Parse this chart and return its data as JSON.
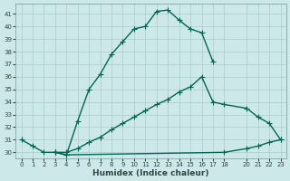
{
  "xlabel": "Humidex (Indice chaleur)",
  "bg_color": "#cce8e8",
  "line_color": "#006655",
  "grid_color": "#aacccc",
  "xlim": [
    -0.5,
    23.5
  ],
  "ylim": [
    29.5,
    41.8
  ],
  "xticks": [
    0,
    1,
    2,
    3,
    4,
    5,
    6,
    7,
    8,
    9,
    10,
    11,
    12,
    13,
    14,
    15,
    16,
    17,
    18,
    20,
    21,
    22,
    23
  ],
  "yticks": [
    30,
    31,
    32,
    33,
    34,
    35,
    36,
    37,
    38,
    39,
    40,
    41
  ],
  "series": [
    {
      "x": [
        0,
        1,
        2,
        3,
        4,
        5,
        6,
        7,
        8,
        9,
        10,
        11,
        12,
        13,
        14,
        15,
        16,
        17
      ],
      "y": [
        31.0,
        30.5,
        30.0,
        30.0,
        29.8,
        32.5,
        35.0,
        36.2,
        37.8,
        38.8,
        39.8,
        40.0,
        41.2,
        41.3,
        40.5,
        39.8,
        39.5,
        37.2
      ]
    },
    {
      "x": [
        3,
        4,
        5,
        6,
        7,
        8,
        9,
        10,
        11,
        12,
        13,
        14,
        15,
        16,
        17,
        18,
        20,
        21,
        22,
        23
      ],
      "y": [
        30.0,
        30.0,
        30.3,
        30.8,
        31.2,
        31.8,
        32.3,
        32.8,
        33.3,
        33.8,
        34.2,
        34.8,
        35.2,
        36.0,
        34.0,
        33.8,
        33.5,
        32.8,
        32.3,
        31.0
      ]
    },
    {
      "x": [
        3,
        4,
        18,
        20,
        21,
        22,
        23
      ],
      "y": [
        30.0,
        29.8,
        30.0,
        30.3,
        30.5,
        30.8,
        31.0
      ]
    }
  ],
  "marker": "+",
  "markersize": 4,
  "linewidth": 1.0
}
